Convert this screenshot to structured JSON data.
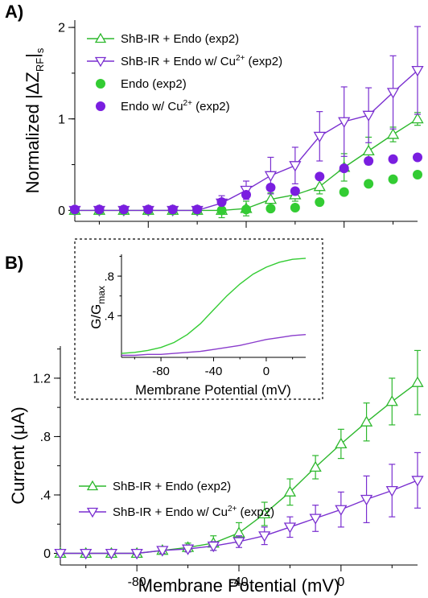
{
  "colors": {
    "green": "#2db82d",
    "purple": "#7a2fd0",
    "solid_green": "#33cc33",
    "solid_purple": "#7a1ee0"
  },
  "panel_labels": [
    "A)",
    "B)"
  ],
  "chart_data": [
    {
      "id": "A",
      "type": "line",
      "ylabel_parts": [
        "Normalized |",
        "ΔZ",
        "RF",
        "|",
        "s"
      ],
      "xlabel": "",
      "x_ticks": [
        -80,
        -40,
        0
      ],
      "x_tick_labels": [],
      "y_ticks": [
        0,
        1,
        2
      ],
      "y_tick_labels": [
        "0",
        "1",
        "2"
      ],
      "xlim": [
        -110,
        30
      ],
      "ylim": [
        -0.12,
        2.08
      ],
      "series": [
        {
          "name": "ShB-IR + Endo (exp2)",
          "style": "open-up-triangle-line",
          "color": "#2db82d",
          "x": [
            -110,
            -100,
            -90,
            -80,
            -70,
            -60,
            -50,
            -40,
            -30,
            -20,
            -10,
            0,
            10,
            20,
            30
          ],
          "y": [
            0.0,
            0.0,
            0.0,
            0.0,
            0.0,
            0.0,
            0.0,
            0.02,
            0.12,
            0.17,
            0.26,
            0.47,
            0.65,
            0.83,
            1.0
          ],
          "err": [
            0.02,
            0.02,
            0.02,
            0.02,
            0.02,
            0.02,
            0.08,
            0.08,
            0.07,
            0.07,
            0.08,
            0.15,
            0.15,
            0.08,
            0.07
          ]
        },
        {
          "name": "ShB-IR + Endo w/ Cu2+ (exp2)",
          "style": "open-down-triangle-line",
          "color": "#7a2fd0",
          "x": [
            -110,
            -100,
            -90,
            -80,
            -70,
            -60,
            -50,
            -40,
            -30,
            -20,
            -10,
            0,
            10,
            20,
            30
          ],
          "y": [
            0.0,
            0.0,
            0.0,
            0.0,
            0.0,
            0.0,
            0.08,
            0.22,
            0.38,
            0.49,
            0.81,
            0.97,
            1.04,
            1.29,
            1.53
          ],
          "err": [
            0.02,
            0.02,
            0.02,
            0.02,
            0.02,
            0.02,
            0.08,
            0.1,
            0.2,
            0.2,
            0.27,
            0.38,
            0.3,
            0.4,
            0.48
          ]
        },
        {
          "name": "Endo (exp2)",
          "style": "filled-circle",
          "color": "#33cc33",
          "x": [
            -110,
            -100,
            -90,
            -80,
            -70,
            -60,
            -50,
            -40,
            -30,
            -20,
            -10,
            0,
            10,
            20,
            30
          ],
          "y": [
            0.0,
            0.0,
            0.0,
            0.0,
            0.0,
            0.0,
            0.0,
            0.01,
            0.02,
            0.03,
            0.09,
            0.2,
            0.29,
            0.34,
            0.39
          ]
        },
        {
          "name": "Endo w/ Cu2+ (exp2)",
          "style": "filled-circle",
          "color": "#7a1ee0",
          "x": [
            -110,
            -100,
            -90,
            -80,
            -70,
            -60,
            -50,
            -40,
            -30,
            -20,
            -10,
            0,
            10,
            20,
            30
          ],
          "y": [
            0.01,
            0.01,
            0.01,
            0.01,
            0.01,
            0.01,
            0.09,
            0.17,
            0.25,
            0.21,
            0.37,
            0.46,
            0.54,
            0.56,
            0.58
          ]
        }
      ],
      "legend": [
        {
          "text": "ShB-IR + Endo (exp2)",
          "superscript": "",
          "suffix": ""
        },
        {
          "text": "ShB-IR + Endo w/ Cu",
          "superscript": "2+",
          "suffix": " (exp2)"
        },
        {
          "text": "Endo (exp2)",
          "superscript": "",
          "suffix": ""
        },
        {
          "text": "Endo w/ Cu",
          "superscript": "2+",
          "suffix": " (exp2)"
        }
      ],
      "legend_position": "top-left"
    },
    {
      "id": "B",
      "type": "line",
      "ylabel": "Current (μA)",
      "xlabel": "Membrane Potential (mV)",
      "x_ticks": [
        -80,
        -40,
        0
      ],
      "x_tick_labels": [
        "-80",
        "-40",
        "0"
      ],
      "y_ticks": [
        0,
        0.4,
        0.8,
        1.2
      ],
      "y_tick_labels": [
        "0",
        ".4",
        ".8",
        "1.2"
      ],
      "xlim": [
        -110,
        30
      ],
      "ylim": [
        -0.08,
        1.42
      ],
      "series": [
        {
          "name": "ShB-IR + Endo (exp2)",
          "style": "open-up-triangle-line",
          "color": "#2db82d",
          "x": [
            -110,
            -100,
            -90,
            -80,
            -70,
            -60,
            -50,
            -40,
            -30,
            -20,
            -10,
            0,
            10,
            20,
            30
          ],
          "y": [
            0.0,
            0.0,
            0.0,
            0.0,
            0.02,
            0.04,
            0.07,
            0.14,
            0.27,
            0.42,
            0.59,
            0.75,
            0.9,
            1.04,
            1.17
          ],
          "err": [
            0.01,
            0.01,
            0.01,
            0.01,
            0.02,
            0.03,
            0.05,
            0.07,
            0.08,
            0.09,
            0.08,
            0.1,
            0.13,
            0.16,
            0.22
          ]
        },
        {
          "name": "ShB-IR + Endo w/ Cu2+ (exp2)",
          "style": "open-down-triangle-line",
          "color": "#7a2fd0",
          "x": [
            -110,
            -100,
            -90,
            -80,
            -70,
            -60,
            -50,
            -40,
            -30,
            -20,
            -10,
            0,
            10,
            20,
            30
          ],
          "y": [
            0.0,
            0.0,
            0.0,
            0.0,
            0.02,
            0.03,
            0.05,
            0.08,
            0.12,
            0.18,
            0.24,
            0.3,
            0.37,
            0.43,
            0.5
          ],
          "err": [
            0.01,
            0.01,
            0.01,
            0.01,
            0.02,
            0.02,
            0.03,
            0.04,
            0.06,
            0.07,
            0.09,
            0.12,
            0.16,
            0.18,
            0.19
          ]
        }
      ],
      "legend": [
        {
          "text": "ShB-IR + Endo (exp2)",
          "superscript": "",
          "suffix": ""
        },
        {
          "text": "ShB-IR + Endo w/ Cu",
          "superscript": "2+",
          "suffix": " (exp2)"
        }
      ],
      "legend_position": "lower-left"
    },
    {
      "id": "B-inset",
      "type": "line",
      "ylabel_parts": [
        "G/G",
        "max"
      ],
      "xlabel": "Membrane Potential (mV)",
      "x_ticks": [
        -80,
        -40,
        0
      ],
      "x_tick_labels": [
        "-80",
        "-40",
        "0"
      ],
      "y_ticks": [
        0.4,
        0.8
      ],
      "y_tick_labels": [
        ".4",
        ".8"
      ],
      "xlim": [
        -110,
        30
      ],
      "ylim": [
        -0.02,
        1.02
      ],
      "series": [
        {
          "color": "#33cc33",
          "x": [
            -110,
            -100,
            -90,
            -80,
            -70,
            -60,
            -50,
            -40,
            -30,
            -20,
            -10,
            0,
            10,
            20,
            30
          ],
          "y": [
            0.02,
            0.03,
            0.05,
            0.08,
            0.13,
            0.21,
            0.32,
            0.46,
            0.6,
            0.72,
            0.82,
            0.89,
            0.94,
            0.97,
            0.98
          ]
        },
        {
          "color": "#8a3ccc",
          "x": [
            -110,
            -100,
            -90,
            -80,
            -70,
            -60,
            -50,
            -40,
            -30,
            -20,
            -10,
            0,
            10,
            20,
            30
          ],
          "y": [
            0.0,
            0.0,
            0.01,
            0.01,
            0.02,
            0.03,
            0.04,
            0.06,
            0.08,
            0.1,
            0.13,
            0.16,
            0.18,
            0.2,
            0.21
          ]
        }
      ]
    }
  ]
}
